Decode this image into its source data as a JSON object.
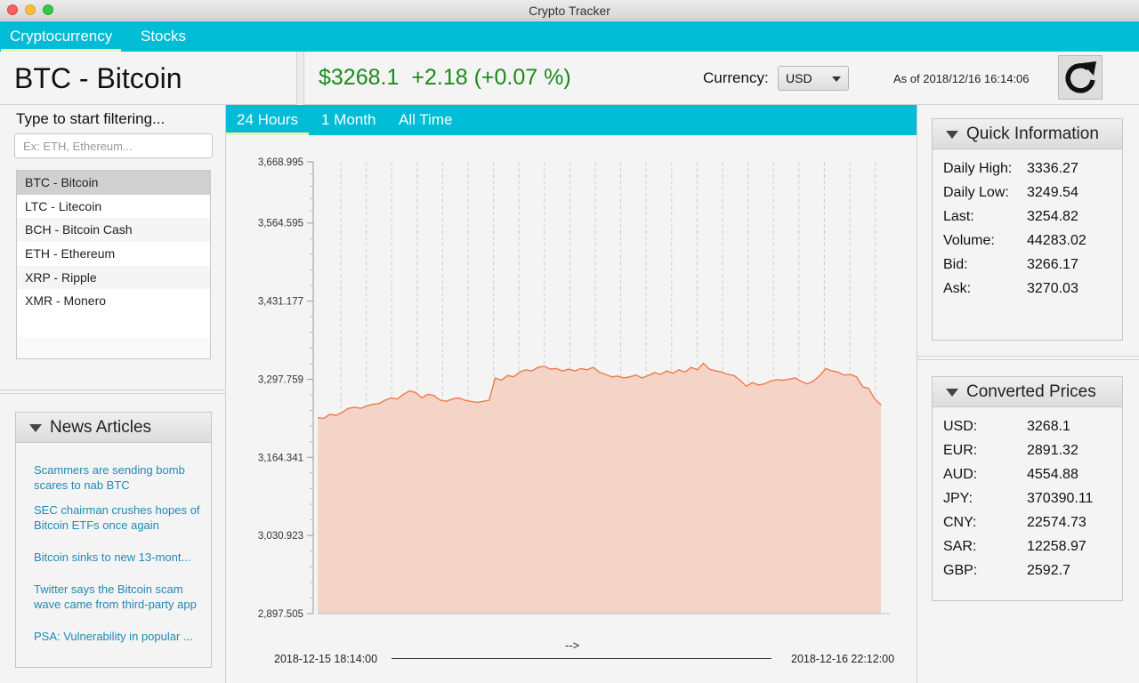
{
  "window": {
    "title": "Crypto Tracker"
  },
  "top_tabs": [
    {
      "label": "Cryptocurrency",
      "active": true
    },
    {
      "label": "Stocks",
      "active": false
    }
  ],
  "header": {
    "coin_title": "BTC - Bitcoin",
    "price": "$3268.1",
    "change": "+2.18 (+0.07 %)",
    "currency_label": "Currency:",
    "currency_value": "USD",
    "as_of": "As of 2018/12/16 16:14:06",
    "refresh_icon": "refresh-icon"
  },
  "filter": {
    "label": "Type to start filtering...",
    "placeholder": "Ex: ETH, Ethereum..."
  },
  "coins": [
    {
      "label": "BTC - Bitcoin",
      "selected": true
    },
    {
      "label": "LTC - Litecoin",
      "selected": false
    },
    {
      "label": "BCH - Bitcoin Cash",
      "selected": false
    },
    {
      "label": "ETH - Ethereum",
      "selected": false
    },
    {
      "label": "XRP - Ripple",
      "selected": false
    },
    {
      "label": "XMR - Monero",
      "selected": false
    }
  ],
  "news": {
    "title": "News Articles",
    "items": [
      "Scammers are sending bomb scares to nab BTC",
      "SEC chairman crushes hopes of Bitcoin ETFs once again",
      "Bitcoin sinks to new 13-mont...",
      "Twitter says the Bitcoin scam wave came from third-party app",
      "PSA: Vulnerability in popular ..."
    ]
  },
  "range_tabs": [
    {
      "label": "24 Hours",
      "active": true
    },
    {
      "label": "1 Month",
      "active": false
    },
    {
      "label": "All Time",
      "active": false
    }
  ],
  "quick_info": {
    "title": "Quick Information",
    "rows": [
      {
        "key": "Daily High:",
        "value": "3336.27"
      },
      {
        "key": "Daily Low:",
        "value": "3249.54"
      },
      {
        "key": "Last:",
        "value": "3254.82"
      },
      {
        "key": "Volume:",
        "value": "44283.02"
      },
      {
        "key": "Bid:",
        "value": "3266.17"
      },
      {
        "key": "Ask:",
        "value": "3270.03"
      }
    ]
  },
  "converted": {
    "title": "Converted Prices",
    "rows": [
      {
        "key": "USD:",
        "value": "3268.1"
      },
      {
        "key": "EUR:",
        "value": "2891.32"
      },
      {
        "key": "AUD:",
        "value": "4554.88"
      },
      {
        "key": "JPY:",
        "value": "370390.11"
      },
      {
        "key": "CNY:",
        "value": "22574.73"
      },
      {
        "key": "SAR:",
        "value": "12258.97"
      },
      {
        "key": "GBP:",
        "value": "2592.7"
      }
    ]
  },
  "chart_data": {
    "type": "area",
    "x_start_label": "2018-12-15 18:14:00",
    "x_end_label": "2018-12-16 22:12:00",
    "x_axis_arrow": "-->",
    "ylim": [
      2897.505,
      3668.995
    ],
    "y_ticks": [
      "3,668.995",
      "3,564.595",
      "3,431.177",
      "3,297.759",
      "3,164.341",
      "3,030.923",
      "2,897.505"
    ],
    "grid": true,
    "colors": {
      "line": "#f07a4a",
      "fill": "#f5d4c8"
    },
    "y": [
      3232,
      3231,
      3238,
      3236,
      3241,
      3248,
      3250,
      3248,
      3252,
      3255,
      3256,
      3262,
      3266,
      3264,
      3272,
      3278,
      3275,
      3266,
      3272,
      3270,
      3262,
      3260,
      3264,
      3266,
      3262,
      3260,
      3258,
      3260,
      3262,
      3300,
      3296,
      3304,
      3302,
      3310,
      3314,
      3312,
      3318,
      3320,
      3315,
      3316,
      3312,
      3315,
      3312,
      3316,
      3314,
      3318,
      3310,
      3306,
      3302,
      3303,
      3300,
      3302,
      3305,
      3300,
      3304,
      3309,
      3306,
      3312,
      3308,
      3314,
      3310,
      3318,
      3314,
      3325,
      3315,
      3312,
      3310,
      3306,
      3304,
      3296,
      3286,
      3292,
      3288,
      3290,
      3295,
      3297,
      3296,
      3298,
      3300,
      3294,
      3290,
      3295,
      3304,
      3316,
      3312,
      3310,
      3305,
      3306,
      3302,
      3285,
      3282,
      3264,
      3254
    ]
  }
}
